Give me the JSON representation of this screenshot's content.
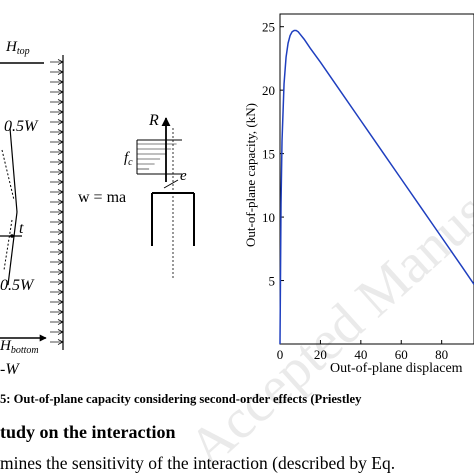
{
  "figure": {
    "diagram_left": {
      "h_top": "H",
      "h_top_sub": "top",
      "top_w": "0.5W",
      "t_label": "t",
      "bottom_w": "0.5W",
      "h_bottom": "H",
      "h_bottom_sub": "bottom",
      "w_bottom": "-W"
    },
    "diagram_middle": {
      "r_label": "R",
      "fc_label": "f",
      "fc_sub": "c",
      "e_label": "e",
      "w_eq": "w = ma"
    },
    "chart_data": {
      "type": "line",
      "title": "",
      "xlabel": "Out-of-plane displacem",
      "ylabel": "Out-of-plane capacity, (kN)",
      "x_ticks": [
        "0",
        "20",
        "40",
        "60",
        "80"
      ],
      "y_ticks": [
        "5",
        "10",
        "15",
        "20",
        "25"
      ],
      "xlim": [
        0,
        96
      ],
      "ylim": [
        0,
        26
      ],
      "grid": false,
      "series": [
        {
          "color": "#1f3fbf",
          "x": [
            0,
            0.5,
            1,
            2,
            3,
            4,
            5,
            6,
            7,
            8,
            9,
            10,
            12,
            15,
            20,
            30,
            40,
            50,
            60,
            70,
            80,
            90,
            96
          ],
          "y": [
            0,
            11,
            16,
            20.5,
            22.6,
            23.7,
            24.3,
            24.6,
            24.7,
            24.7,
            24.6,
            24.4,
            24.0,
            23.3,
            22.2,
            19.9,
            17.6,
            15.3,
            13.0,
            10.7,
            8.4,
            6.1,
            4.7
          ]
        }
      ]
    }
  },
  "caption": "5: Out-of-plane capacity considering second-order effects (Priestley",
  "section_heading": "tudy on the interaction",
  "body_text": "mines the sensitivity of the interaction (described by Eq.",
  "watermark": "Accepted Manuscript"
}
